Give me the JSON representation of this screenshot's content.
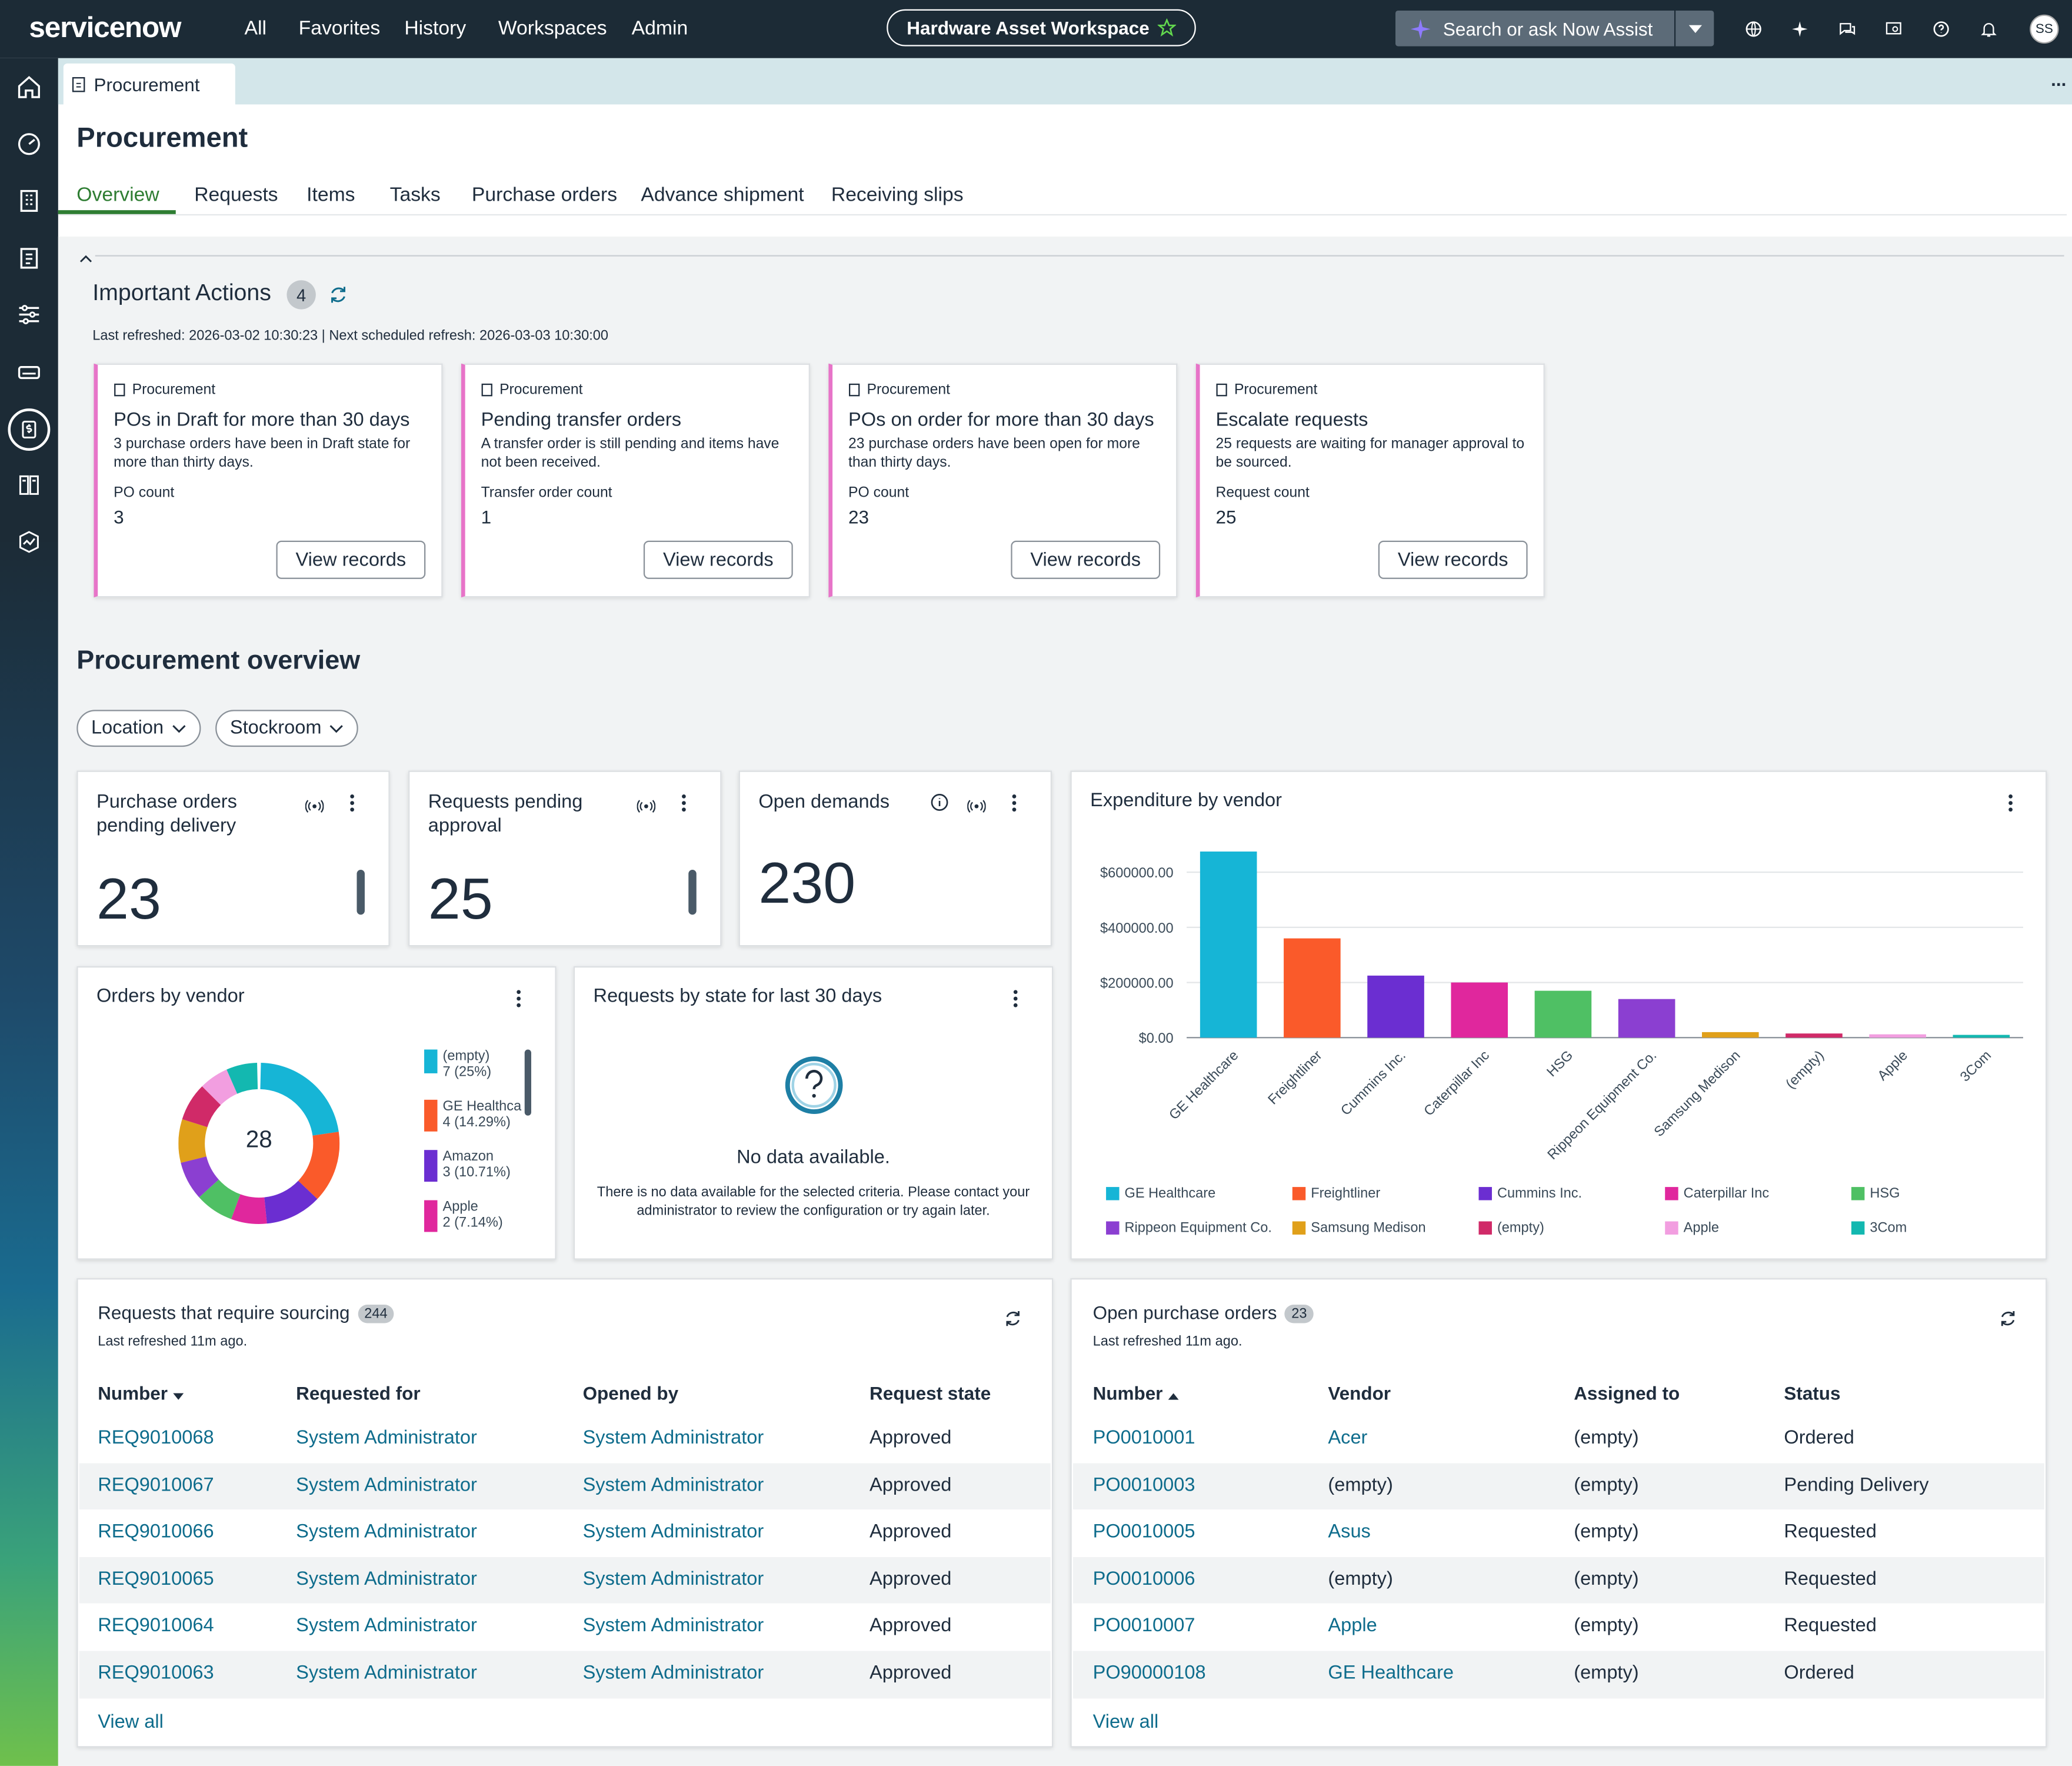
{
  "app": {
    "logo": "servicenow",
    "nav": [
      "All",
      "Favorites",
      "History",
      "Workspaces",
      "Admin"
    ],
    "workspace_label": "Hardware Asset Workspace",
    "search_placeholder": "Search or ask Now Assist",
    "avatar_initials": "SS",
    "more": "..."
  },
  "tab": {
    "label": "Procurement"
  },
  "page": {
    "title": "Procurement",
    "subtabs": [
      "Overview",
      "Requests",
      "Items",
      "Tasks",
      "Purchase orders",
      "Advance shipment",
      "Receiving slips"
    ],
    "active_subtab": "Overview"
  },
  "important_actions": {
    "title": "Important Actions",
    "count": "4",
    "refresh_text": "Last refreshed: 2026-03-02 10:30:23 | Next scheduled refresh: 2026-03-03 10:30:00",
    "cards": [
      {
        "source": "Procurement",
        "title": "POs in Draft for more than 30 days",
        "desc": "3 purchase orders have been in Draft state for more than thirty days.",
        "label": "PO count",
        "value": "3",
        "button": "View records"
      },
      {
        "source": "Procurement",
        "title": "Pending transfer orders",
        "desc": "A transfer order is still pending and items have not been received.",
        "label": "Transfer order count",
        "value": "1",
        "button": "View records"
      },
      {
        "source": "Procurement",
        "title": "POs on order for more than 30 days",
        "desc": "23 purchase orders have been open for more than thirty days.",
        "label": "PO count",
        "value": "23",
        "button": "View records"
      },
      {
        "source": "Procurement",
        "title": "Escalate requests",
        "desc": "25 requests are waiting for manager approval to be sourced.",
        "label": "Request count",
        "value": "25",
        "button": "View records"
      }
    ]
  },
  "overview": {
    "title": "Procurement overview",
    "filters": [
      "Location",
      "Stockroom"
    ],
    "kpis": [
      {
        "title": "Purchase orders pending delivery",
        "value": "23"
      },
      {
        "title": "Requests pending approval",
        "value": "25"
      },
      {
        "title": "Open demands",
        "value": "230"
      }
    ]
  },
  "orders_by_vendor": {
    "title": "Orders by vendor",
    "total": "28",
    "legend": [
      {
        "name": "(empty)",
        "value": "7 (25%)",
        "color": "#16b5d6"
      },
      {
        "name": "GE Healthca",
        "value": "4 (14.29%)",
        "color": "#fa5a2a"
      },
      {
        "name": "Amazon",
        "value": "3 (10.71%)",
        "color": "#6b2ed1"
      },
      {
        "name": "Apple",
        "value": "2 (7.14%)",
        "color": "#e0279d"
      }
    ]
  },
  "requests_by_state": {
    "title": "Requests by state for last 30 days",
    "no_data_title": "No data available.",
    "no_data_desc": "There is no data available for the selected criteria. Please contact your administrator to review the configuration or try again later."
  },
  "expenditure": {
    "title": "Expenditure by vendor"
  },
  "chart_data": {
    "type": "bar",
    "title": "Expenditure by vendor",
    "categories": [
      "GE Healthcare",
      "Freightliner",
      "Cummins Inc.",
      "Caterpillar Inc",
      "HSG",
      "Rippeon Equipment Co.",
      "Samsung Medison",
      "(empty)",
      "Apple",
      "3Com"
    ],
    "values": [
      675000,
      360000,
      225000,
      200000,
      170000,
      140000,
      20000,
      15000,
      12000,
      10000
    ],
    "colors": [
      "#16b5d6",
      "#fa5a2a",
      "#6b2ed1",
      "#e0279d",
      "#4fc064",
      "#8b3fd1",
      "#e0a01a",
      "#d02a68",
      "#f29ee0",
      "#13b8b0"
    ],
    "ylim": [
      0,
      700000
    ],
    "yticks": [
      0,
      200000,
      400000,
      600000
    ],
    "ytick_labels": [
      "$0.00",
      "$200000.00",
      "$400000.00",
      "$600000.00"
    ],
    "grid": true,
    "legend_position": "bottom"
  },
  "sourcing": {
    "title": "Requests that require sourcing",
    "count": "244",
    "refreshed": "Last refreshed 11m ago.",
    "headers": [
      "Number",
      "Requested for",
      "Opened by",
      "Request state"
    ],
    "rows": [
      [
        "REQ9010068",
        "System Administrator",
        "System Administrator",
        "Approved"
      ],
      [
        "REQ9010067",
        "System Administrator",
        "System Administrator",
        "Approved"
      ],
      [
        "REQ9010066",
        "System Administrator",
        "System Administrator",
        "Approved"
      ],
      [
        "REQ9010065",
        "System Administrator",
        "System Administrator",
        "Approved"
      ],
      [
        "REQ9010064",
        "System Administrator",
        "System Administrator",
        "Approved"
      ],
      [
        "REQ9010063",
        "System Administrator",
        "System Administrator",
        "Approved"
      ]
    ],
    "view_all": "View all"
  },
  "open_pos": {
    "title": "Open purchase orders",
    "count": "23",
    "refreshed": "Last refreshed 11m ago.",
    "headers": [
      "Number",
      "Vendor",
      "Assigned to",
      "Status"
    ],
    "rows": [
      [
        "PO0010001",
        "Acer",
        "(empty)",
        "Ordered"
      ],
      [
        "PO0010003",
        "(empty)",
        "(empty)",
        "Pending Delivery"
      ],
      [
        "PO0010005",
        "Asus",
        "(empty)",
        "Requested"
      ],
      [
        "PO0010006",
        "(empty)",
        "(empty)",
        "Requested"
      ],
      [
        "PO0010007",
        "Apple",
        "(empty)",
        "Requested"
      ],
      [
        "PO90000108",
        "GE Healthcare",
        "(empty)",
        "Ordered"
      ]
    ],
    "vendor_link": [
      true,
      false,
      true,
      false,
      true,
      true
    ],
    "view_all": "View all"
  }
}
